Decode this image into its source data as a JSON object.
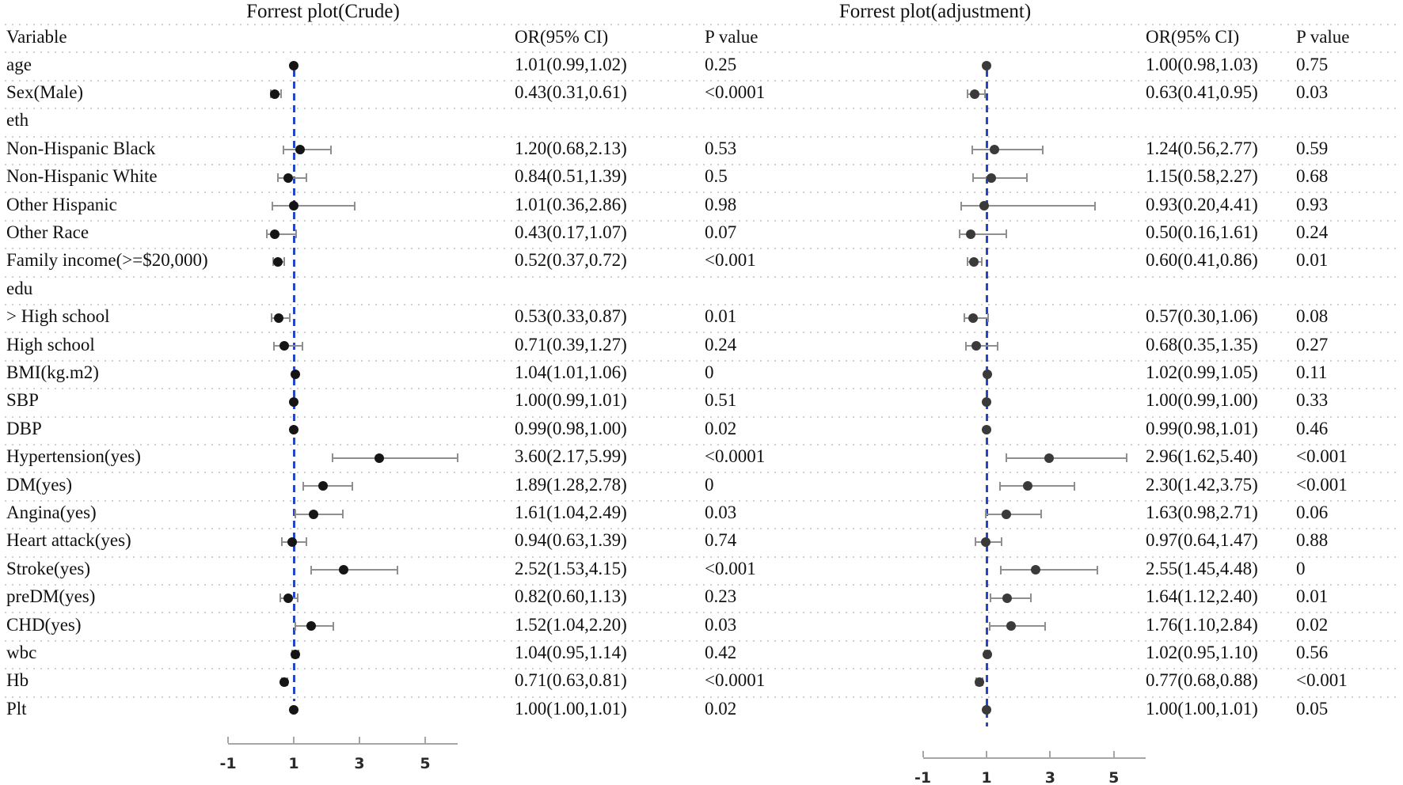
{
  "figure": {
    "left_title": "Forrest plot(Crude)",
    "right_title": "Forrest plot(adjustment)"
  },
  "header": {
    "variable": "Variable",
    "or_ci": "OR(95% CI)",
    "p": "P value"
  },
  "colors": {
    "reference_line": "#2547c4",
    "dot_left": "#151515",
    "dot_right": "#3a3a3a",
    "error_bar": "#8f8f8f",
    "separator": "#cfcfcf",
    "axis": "#a6a6a6"
  },
  "chart_data": [
    {
      "type": "scatter",
      "subtype": "forest",
      "title": "Forrest plot(Crude)",
      "xticks": [
        -1,
        1,
        3,
        5
      ],
      "xlim": [
        -1,
        6
      ],
      "reference_line_x": 1,
      "grid": "dotted-row-separators",
      "legend_position": "none",
      "categories": [
        "age",
        "Sex(Male)",
        "eth",
        "Non-Hispanic Black",
        "Non-Hispanic White",
        "Other Hispanic",
        "Other Race",
        "Family income(>=$20,000)",
        "edu",
        "> High school",
        "High school",
        "BMI(kg.m2)",
        "SBP",
        "DBP",
        "Hypertension(yes)",
        "DM(yes)",
        "Angina(yes)",
        "Heart attack(yes)",
        "Stroke(yes)",
        "preDM(yes)",
        "CHD(yes)",
        "wbc",
        "Hb",
        "Plt"
      ],
      "or": [
        1.01,
        0.43,
        null,
        1.2,
        0.84,
        1.01,
        0.43,
        0.52,
        null,
        0.53,
        0.71,
        1.04,
        1.0,
        0.99,
        3.6,
        1.89,
        1.61,
        0.94,
        2.52,
        0.82,
        1.52,
        1.04,
        0.71,
        1.0
      ],
      "ci_low": [
        0.99,
        0.31,
        null,
        0.68,
        0.51,
        0.36,
        0.17,
        0.37,
        null,
        0.33,
        0.39,
        1.01,
        0.99,
        0.98,
        2.17,
        1.28,
        1.04,
        0.63,
        1.53,
        0.6,
        1.04,
        0.95,
        0.63,
        1.0
      ],
      "ci_high": [
        1.02,
        0.61,
        null,
        2.13,
        1.39,
        2.86,
        1.07,
        0.72,
        null,
        0.87,
        1.27,
        1.06,
        1.01,
        1.0,
        5.99,
        2.78,
        2.49,
        1.39,
        4.15,
        1.13,
        2.2,
        1.14,
        0.81,
        1.01
      ],
      "or_text": [
        "1.01(0.99,1.02)",
        "0.43(0.31,0.61)",
        null,
        "1.20(0.68,2.13)",
        "0.84(0.51,1.39)",
        "1.01(0.36,2.86)",
        "0.43(0.17,1.07)",
        "0.52(0.37,0.72)",
        null,
        "0.53(0.33,0.87)",
        "0.71(0.39,1.27)",
        "1.04(1.01,1.06)",
        "1.00(0.99,1.01)",
        "0.99(0.98,1.00)",
        "3.60(2.17,5.99)",
        "1.89(1.28,2.78)",
        "1.61(1.04,2.49)",
        "0.94(0.63,1.39)",
        "2.52(1.53,4.15)",
        "0.82(0.60,1.13)",
        "1.52(1.04,2.20)",
        "1.04(0.95,1.14)",
        "0.71(0.63,0.81)",
        "1.00(1.00,1.01)"
      ],
      "p_values": [
        "0.25",
        "<0.0001",
        null,
        "0.53",
        "0.5",
        "0.98",
        "0.07",
        "<0.001",
        null,
        "0.01",
        "0.24",
        "0",
        "0.51",
        "0.02",
        "<0.0001",
        "0",
        "0.03",
        "0.74",
        "<0.001",
        "0.23",
        "0.03",
        "0.42",
        "<0.0001",
        "0.02"
      ]
    },
    {
      "type": "scatter",
      "subtype": "forest",
      "title": "Forrest plot(adjustment)",
      "xticks": [
        -1,
        1,
        3,
        5
      ],
      "xlim": [
        -1,
        6
      ],
      "reference_line_x": 1,
      "grid": "dotted-row-separators",
      "legend_position": "none",
      "categories": [
        "age",
        "Sex(Male)",
        "eth",
        "Non-Hispanic Black",
        "Non-Hispanic White",
        "Other Hispanic",
        "Other Race",
        "Family income(>=$20,000)",
        "edu",
        "> High school",
        "High school",
        "BMI(kg.m2)",
        "SBP",
        "DBP",
        "Hypertension(yes)",
        "DM(yes)",
        "Angina(yes)",
        "Heart attack(yes)",
        "Stroke(yes)",
        "preDM(yes)",
        "CHD(yes)",
        "wbc",
        "Hb",
        "Plt"
      ],
      "or": [
        1.0,
        0.63,
        null,
        1.24,
        1.15,
        0.93,
        0.5,
        0.6,
        null,
        0.57,
        0.68,
        1.02,
        1.0,
        0.99,
        2.96,
        2.3,
        1.63,
        0.97,
        2.55,
        1.64,
        1.76,
        1.02,
        0.77,
        1.0
      ],
      "ci_low": [
        0.98,
        0.41,
        null,
        0.56,
        0.58,
        0.2,
        0.16,
        0.41,
        null,
        0.3,
        0.35,
        0.99,
        0.99,
        0.98,
        1.62,
        1.42,
        0.98,
        0.64,
        1.45,
        1.12,
        1.1,
        0.95,
        0.68,
        1.0
      ],
      "ci_high": [
        1.03,
        0.95,
        null,
        2.77,
        2.27,
        4.41,
        1.61,
        0.86,
        null,
        1.06,
        1.35,
        1.05,
        1.0,
        1.01,
        5.4,
        3.75,
        2.71,
        1.47,
        4.48,
        2.4,
        2.84,
        1.1,
        0.88,
        1.01
      ],
      "or_text": [
        "1.00(0.98,1.03)",
        "0.63(0.41,0.95)",
        null,
        "1.24(0.56,2.77)",
        "1.15(0.58,2.27)",
        "0.93(0.20,4.41)",
        "0.50(0.16,1.61)",
        "0.60(0.41,0.86)",
        null,
        "0.57(0.30,1.06)",
        "0.68(0.35,1.35)",
        "1.02(0.99,1.05)",
        "1.00(0.99,1.00)",
        "0.99(0.98,1.01)",
        "2.96(1.62,5.40)",
        "2.30(1.42,3.75)",
        "1.63(0.98,2.71)",
        "0.97(0.64,1.47)",
        "2.55(1.45,4.48)",
        "1.64(1.12,2.40)",
        "1.76(1.10,2.84)",
        "1.02(0.95,1.10)",
        "0.77(0.68,0.88)",
        "1.00(1.00,1.01)"
      ],
      "p_values": [
        "0.75",
        "0.03",
        null,
        "0.59",
        "0.68",
        "0.93",
        "0.24",
        "0.01",
        null,
        "0.08",
        "0.27",
        "0.11",
        "0.33",
        "0.46",
        "<0.001",
        "<0.001",
        "0.06",
        "0.88",
        "0",
        "0.01",
        "0.02",
        "0.56",
        "<0.001",
        "0.05"
      ]
    }
  ],
  "axis_tick_labels": [
    "-1",
    "1",
    "3",
    "5"
  ]
}
